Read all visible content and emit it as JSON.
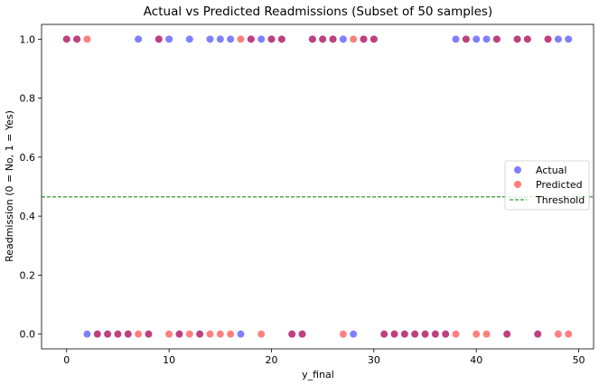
{
  "chart_data": {
    "type": "scatter",
    "title": "Actual vs Predicted Readmissions (Subset of 50 samples)",
    "xlabel": "y_final",
    "ylabel": "Readmission (0 = No, 1 = Yes)",
    "xlim": [
      -2.45,
      51.45
    ],
    "ylim": [
      -0.05,
      1.05
    ],
    "xticks": [
      0,
      10,
      20,
      30,
      40,
      50
    ],
    "yticks": [
      0.0,
      0.2,
      0.4,
      0.6,
      0.8,
      1.0
    ],
    "xtick_labels": [
      "0",
      "10",
      "20",
      "30",
      "40",
      "50"
    ],
    "ytick_labels": [
      "0.0",
      "0.2",
      "0.4",
      "0.6",
      "0.8",
      "1.0"
    ],
    "threshold": 0.465,
    "x": [
      0,
      1,
      2,
      3,
      4,
      5,
      6,
      7,
      8,
      9,
      10,
      11,
      12,
      13,
      14,
      15,
      16,
      17,
      18,
      19,
      20,
      21,
      22,
      23,
      24,
      25,
      26,
      27,
      28,
      29,
      30,
      31,
      32,
      33,
      34,
      35,
      36,
      37,
      38,
      39,
      40,
      41,
      42,
      43,
      44,
      45,
      46,
      47,
      48,
      49
    ],
    "series": [
      {
        "name": "Actual",
        "color": "#0000ff",
        "opacity": 0.5,
        "values": [
          1,
          1,
          0,
          0,
          0,
          0,
          0,
          1,
          0,
          1,
          1,
          0,
          1,
          0,
          1,
          1,
          1,
          0,
          1,
          1,
          1,
          1,
          0,
          0,
          1,
          1,
          1,
          1,
          0,
          1,
          1,
          0,
          0,
          0,
          0,
          0,
          0,
          0,
          1,
          1,
          1,
          1,
          1,
          0,
          1,
          1,
          0,
          1,
          1,
          1
        ]
      },
      {
        "name": "Predicted",
        "color": "#ff0000",
        "opacity": 0.5,
        "values": [
          1,
          1,
          1,
          0,
          0,
          0,
          0,
          0,
          0,
          1,
          0,
          0,
          0,
          0,
          0,
          0,
          0,
          1,
          1,
          0,
          1,
          1,
          0,
          0,
          1,
          1,
          1,
          0,
          1,
          1,
          1,
          0,
          0,
          0,
          0,
          0,
          0,
          0,
          0,
          1,
          0,
          0,
          1,
          0,
          1,
          1,
          0,
          1,
          0,
          0
        ]
      }
    ],
    "legend": {
      "placement": "center-right",
      "entries": [
        "Actual",
        "Predicted",
        "Threshold"
      ]
    },
    "threshold_color": "#008000",
    "grid": false
  }
}
